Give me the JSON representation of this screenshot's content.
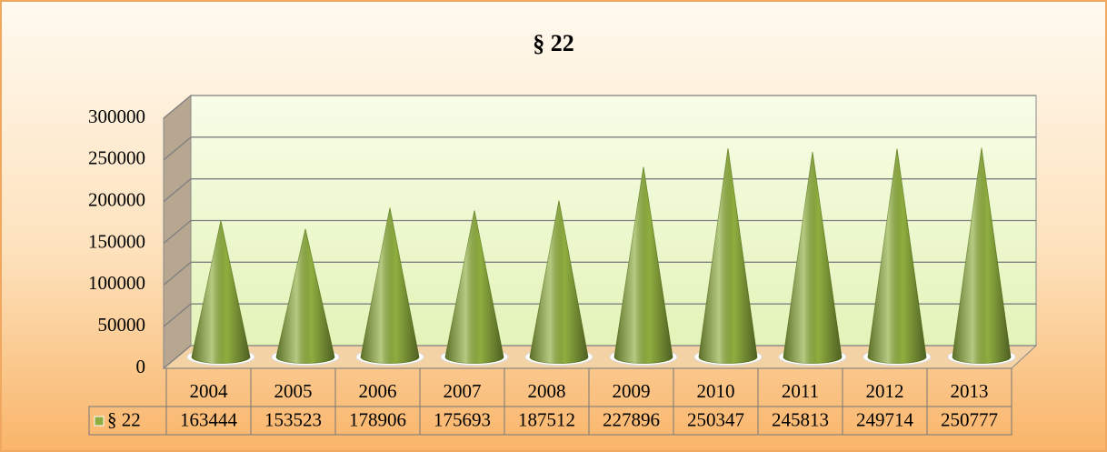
{
  "chart_data": {
    "type": "cone",
    "title": "§ 22",
    "categories": [
      "2004",
      "2005",
      "2006",
      "2007",
      "2008",
      "2009",
      "2010",
      "2011",
      "2012",
      "2013"
    ],
    "series": [
      {
        "name": "§ 22",
        "color": "#8fae3f",
        "values": [
          163444,
          153523,
          178906,
          175693,
          187512,
          227896,
          250347,
          245813,
          249714,
          250777
        ]
      }
    ],
    "ylim": [
      0,
      300000
    ],
    "yticks": [
      0,
      50000,
      100000,
      150000,
      200000,
      250000,
      300000
    ],
    "grid": true
  }
}
